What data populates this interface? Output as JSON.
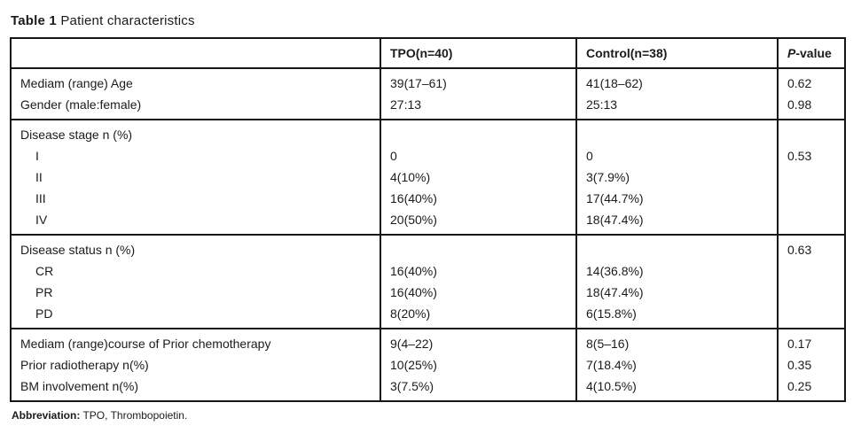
{
  "title": {
    "bold": "Table 1",
    "rest": " Patient characteristics"
  },
  "table": {
    "columns": {
      "stub": "",
      "tpo": "TPO(n=40)",
      "control": "Control(n=38)",
      "p_italic": "P",
      "p_rest": "-value"
    },
    "sections": [
      {
        "rows": [
          {
            "label": "Mediam (range) Age",
            "indent": false,
            "tpo": "39(17–61)",
            "control": "41(18–62)",
            "p": "0.62"
          },
          {
            "label": "Gender (male:female)",
            "indent": false,
            "tpo": "27:13",
            "control": "25:13",
            "p": "0.98"
          }
        ]
      },
      {
        "rows": [
          {
            "label": "Disease stage n (%)",
            "indent": false,
            "tpo": "",
            "control": "",
            "p": ""
          },
          {
            "label": "I",
            "indent": true,
            "tpo": "0",
            "control": "0",
            "p": "0.53"
          },
          {
            "label": "II",
            "indent": true,
            "tpo": "4(10%)",
            "control": "3(7.9%)",
            "p": ""
          },
          {
            "label": "III",
            "indent": true,
            "tpo": "16(40%)",
            "control": "17(44.7%)",
            "p": ""
          },
          {
            "label": "IV",
            "indent": true,
            "tpo": "20(50%)",
            "control": "18(47.4%)",
            "p": ""
          }
        ]
      },
      {
        "rows": [
          {
            "label": "Disease status n (%)",
            "indent": false,
            "tpo": "",
            "control": "",
            "p": "0.63"
          },
          {
            "label": "CR",
            "indent": true,
            "tpo": "16(40%)",
            "control": "14(36.8%)",
            "p": ""
          },
          {
            "label": "PR",
            "indent": true,
            "tpo": "16(40%)",
            "control": "18(47.4%)",
            "p": ""
          },
          {
            "label": "PD",
            "indent": true,
            "tpo": "8(20%)",
            "control": "6(15.8%)",
            "p": ""
          }
        ]
      },
      {
        "rows": [
          {
            "label": "Mediam (range)course of Prior chemotherapy",
            "indent": false,
            "tpo": "9(4–22)",
            "control": "8(5–16)",
            "p": "0.17"
          },
          {
            "label": "Prior radiotherapy n(%)",
            "indent": false,
            "tpo": "10(25%)",
            "control": "7(18.4%)",
            "p": "0.35"
          },
          {
            "label": "BM involvement n(%)",
            "indent": false,
            "tpo": "3(7.5%)",
            "control": "4(10.5%)",
            "p": "0.25"
          }
        ]
      }
    ]
  },
  "footnote": {
    "bold": "Abbreviation:",
    "rest": " TPO, Thrombopoietin."
  }
}
